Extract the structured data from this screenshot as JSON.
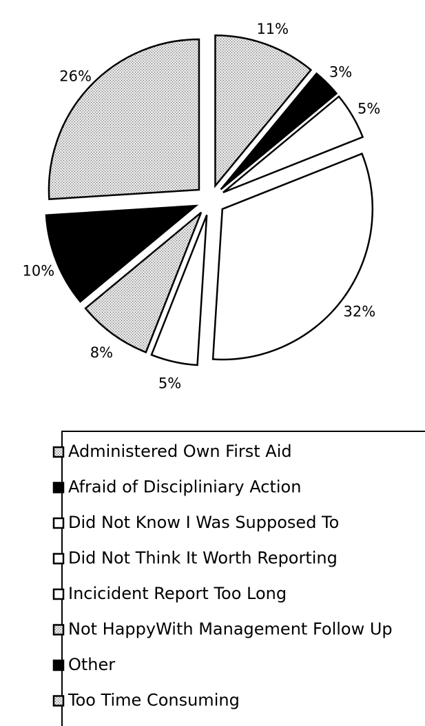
{
  "chart_data": {
    "type": "pie",
    "categories": [
      "Administered Own First Aid",
      "Afraid of Discipliniary Action",
      "Did Not Know I Was Supposed To",
      "Did Not Think It Worth Reporting",
      "Incicident Report Too Long",
      "Not HappyWith Management Follow Up",
      "Other",
      "Too Time Consuming"
    ],
    "values": [
      11,
      3,
      5,
      32,
      5,
      8,
      10,
      26
    ],
    "value_labels": [
      "11%",
      "3%",
      "5%",
      "32%",
      "5%",
      "8%",
      "10%",
      "26%"
    ],
    "colors": [
      "#c4c4c4",
      "#000000",
      "#ffffff",
      "#ffffff",
      "#ffffff",
      "#c4c4c4",
      "#000000",
      "#c4c4c4"
    ],
    "legend": "bottom"
  }
}
